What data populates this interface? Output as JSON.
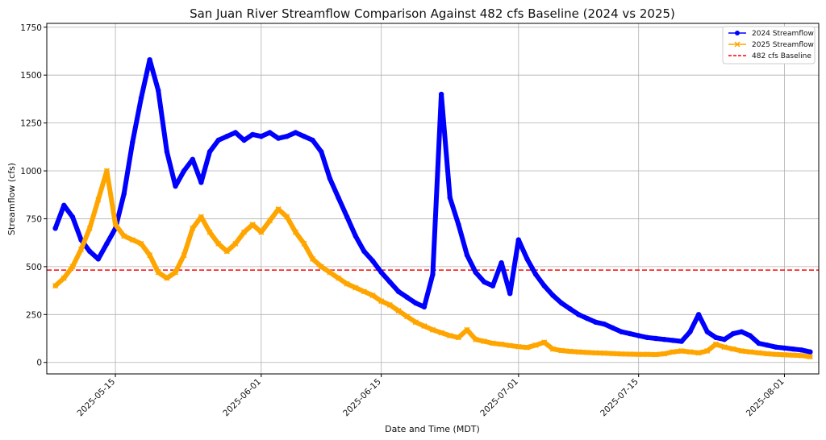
{
  "chart_data": {
    "type": "line",
    "title": "San Juan River Streamflow Comparison Against 482 cfs Baseline (2024 vs 2025)",
    "xlabel": "Date and Time (MDT)",
    "ylabel": "Streamflow (cfs)",
    "x_ticks": [
      "2025-05-15",
      "2025-06-01",
      "2025-06-15",
      "2025-07-01",
      "2025-07-15",
      "2025-08-01"
    ],
    "y_ticks": [
      "0",
      "250",
      "500",
      "750",
      "1000",
      "1250",
      "1500",
      "1750"
    ],
    "xlim": [
      "2025-05-07",
      "2025-08-05"
    ],
    "ylim": [
      -60,
      1770
    ],
    "grid": true,
    "legend_position": "top-right",
    "baseline": {
      "name": "482 cfs Baseline",
      "value": 482,
      "color": "#ff0000",
      "style": "dashed"
    },
    "series": [
      {
        "name": "2024 Streamflow",
        "color": "#0000ff",
        "marker": "circle",
        "points": [
          [
            "2025-05-08",
            700
          ],
          [
            "2025-05-09",
            820
          ],
          [
            "2025-05-10",
            760
          ],
          [
            "2025-05-11",
            640
          ],
          [
            "2025-05-12",
            580
          ],
          [
            "2025-05-13",
            540
          ],
          [
            "2025-05-14",
            620
          ],
          [
            "2025-05-15",
            700
          ],
          [
            "2025-05-16",
            880
          ],
          [
            "2025-05-17",
            1150
          ],
          [
            "2025-05-18",
            1380
          ],
          [
            "2025-05-19",
            1580
          ],
          [
            "2025-05-20",
            1420
          ],
          [
            "2025-05-21",
            1100
          ],
          [
            "2025-05-22",
            920
          ],
          [
            "2025-05-23",
            1000
          ],
          [
            "2025-05-24",
            1060
          ],
          [
            "2025-05-25",
            940
          ],
          [
            "2025-05-26",
            1100
          ],
          [
            "2025-05-27",
            1160
          ],
          [
            "2025-05-28",
            1180
          ],
          [
            "2025-05-29",
            1200
          ],
          [
            "2025-05-30",
            1160
          ],
          [
            "2025-05-31",
            1190
          ],
          [
            "2025-06-01",
            1180
          ],
          [
            "2025-06-02",
            1200
          ],
          [
            "2025-06-03",
            1170
          ],
          [
            "2025-06-04",
            1180
          ],
          [
            "2025-06-05",
            1200
          ],
          [
            "2025-06-06",
            1180
          ],
          [
            "2025-06-07",
            1160
          ],
          [
            "2025-06-08",
            1100
          ],
          [
            "2025-06-09",
            960
          ],
          [
            "2025-06-10",
            860
          ],
          [
            "2025-06-11",
            760
          ],
          [
            "2025-06-12",
            660
          ],
          [
            "2025-06-13",
            580
          ],
          [
            "2025-06-14",
            530
          ],
          [
            "2025-06-15",
            470
          ],
          [
            "2025-06-16",
            420
          ],
          [
            "2025-06-17",
            370
          ],
          [
            "2025-06-18",
            340
          ],
          [
            "2025-06-19",
            310
          ],
          [
            "2025-06-20",
            290
          ],
          [
            "2025-06-21",
            460
          ],
          [
            "2025-06-22",
            1400
          ],
          [
            "2025-06-23",
            860
          ],
          [
            "2025-06-24",
            720
          ],
          [
            "2025-06-25",
            560
          ],
          [
            "2025-06-26",
            470
          ],
          [
            "2025-06-27",
            420
          ],
          [
            "2025-06-28",
            400
          ],
          [
            "2025-06-29",
            520
          ],
          [
            "2025-06-30",
            360
          ],
          [
            "2025-07-01",
            640
          ],
          [
            "2025-07-02",
            540
          ],
          [
            "2025-07-03",
            460
          ],
          [
            "2025-07-04",
            400
          ],
          [
            "2025-07-05",
            350
          ],
          [
            "2025-07-06",
            310
          ],
          [
            "2025-07-07",
            280
          ],
          [
            "2025-07-08",
            250
          ],
          [
            "2025-07-09",
            230
          ],
          [
            "2025-07-10",
            210
          ],
          [
            "2025-07-11",
            200
          ],
          [
            "2025-07-12",
            180
          ],
          [
            "2025-07-13",
            160
          ],
          [
            "2025-07-14",
            150
          ],
          [
            "2025-07-15",
            140
          ],
          [
            "2025-07-16",
            130
          ],
          [
            "2025-07-17",
            125
          ],
          [
            "2025-07-18",
            120
          ],
          [
            "2025-07-19",
            115
          ],
          [
            "2025-07-20",
            110
          ],
          [
            "2025-07-21",
            160
          ],
          [
            "2025-07-22",
            250
          ],
          [
            "2025-07-23",
            160
          ],
          [
            "2025-07-24",
            130
          ],
          [
            "2025-07-25",
            120
          ],
          [
            "2025-07-26",
            150
          ],
          [
            "2025-07-27",
            160
          ],
          [
            "2025-07-28",
            140
          ],
          [
            "2025-07-29",
            100
          ],
          [
            "2025-07-30",
            90
          ],
          [
            "2025-07-31",
            80
          ],
          [
            "2025-08-01",
            75
          ],
          [
            "2025-08-02",
            70
          ],
          [
            "2025-08-03",
            65
          ],
          [
            "2025-08-04",
            55
          ]
        ]
      },
      {
        "name": "2025 Streamflow",
        "color": "#ffa500",
        "marker": "x",
        "points": [
          [
            "2025-05-08",
            400
          ],
          [
            "2025-05-09",
            440
          ],
          [
            "2025-05-10",
            500
          ],
          [
            "2025-05-11",
            590
          ],
          [
            "2025-05-12",
            700
          ],
          [
            "2025-05-13",
            850
          ],
          [
            "2025-05-14",
            1000
          ],
          [
            "2025-05-15",
            720
          ],
          [
            "2025-05-16",
            660
          ],
          [
            "2025-05-17",
            640
          ],
          [
            "2025-05-18",
            620
          ],
          [
            "2025-05-19",
            560
          ],
          [
            "2025-05-20",
            470
          ],
          [
            "2025-05-21",
            440
          ],
          [
            "2025-05-22",
            470
          ],
          [
            "2025-05-23",
            560
          ],
          [
            "2025-05-24",
            700
          ],
          [
            "2025-05-25",
            760
          ],
          [
            "2025-05-26",
            680
          ],
          [
            "2025-05-27",
            620
          ],
          [
            "2025-05-28",
            580
          ],
          [
            "2025-05-29",
            620
          ],
          [
            "2025-05-30",
            680
          ],
          [
            "2025-05-31",
            720
          ],
          [
            "2025-06-01",
            680
          ],
          [
            "2025-06-02",
            740
          ],
          [
            "2025-06-03",
            800
          ],
          [
            "2025-06-04",
            760
          ],
          [
            "2025-06-05",
            680
          ],
          [
            "2025-06-06",
            620
          ],
          [
            "2025-06-07",
            540
          ],
          [
            "2025-06-08",
            500
          ],
          [
            "2025-06-09",
            470
          ],
          [
            "2025-06-10",
            440
          ],
          [
            "2025-06-11",
            410
          ],
          [
            "2025-06-12",
            390
          ],
          [
            "2025-06-13",
            370
          ],
          [
            "2025-06-14",
            350
          ],
          [
            "2025-06-15",
            320
          ],
          [
            "2025-06-16",
            300
          ],
          [
            "2025-06-17",
            270
          ],
          [
            "2025-06-18",
            240
          ],
          [
            "2025-06-19",
            210
          ],
          [
            "2025-06-20",
            190
          ],
          [
            "2025-06-21",
            170
          ],
          [
            "2025-06-22",
            155
          ],
          [
            "2025-06-23",
            140
          ],
          [
            "2025-06-24",
            130
          ],
          [
            "2025-06-25",
            170
          ],
          [
            "2025-06-26",
            120
          ],
          [
            "2025-06-27",
            110
          ],
          [
            "2025-06-28",
            100
          ],
          [
            "2025-06-29",
            95
          ],
          [
            "2025-06-30",
            88
          ],
          [
            "2025-07-01",
            82
          ],
          [
            "2025-07-02",
            78
          ],
          [
            "2025-07-03",
            90
          ],
          [
            "2025-07-04",
            105
          ],
          [
            "2025-07-05",
            70
          ],
          [
            "2025-07-06",
            62
          ],
          [
            "2025-07-07",
            58
          ],
          [
            "2025-07-08",
            55
          ],
          [
            "2025-07-09",
            52
          ],
          [
            "2025-07-10",
            50
          ],
          [
            "2025-07-11",
            48
          ],
          [
            "2025-07-12",
            46
          ],
          [
            "2025-07-13",
            44
          ],
          [
            "2025-07-14",
            43
          ],
          [
            "2025-07-15",
            42
          ],
          [
            "2025-07-16",
            42
          ],
          [
            "2025-07-17",
            41
          ],
          [
            "2025-07-18",
            45
          ],
          [
            "2025-07-19",
            55
          ],
          [
            "2025-07-20",
            60
          ],
          [
            "2025-07-21",
            55
          ],
          [
            "2025-07-22",
            50
          ],
          [
            "2025-07-23",
            60
          ],
          [
            "2025-07-24",
            95
          ],
          [
            "2025-07-25",
            80
          ],
          [
            "2025-07-26",
            70
          ],
          [
            "2025-07-27",
            60
          ],
          [
            "2025-07-28",
            55
          ],
          [
            "2025-07-29",
            50
          ],
          [
            "2025-07-30",
            45
          ],
          [
            "2025-07-31",
            42
          ],
          [
            "2025-08-01",
            40
          ],
          [
            "2025-08-02",
            38
          ],
          [
            "2025-08-03",
            36
          ],
          [
            "2025-08-04",
            30
          ]
        ]
      }
    ]
  }
}
